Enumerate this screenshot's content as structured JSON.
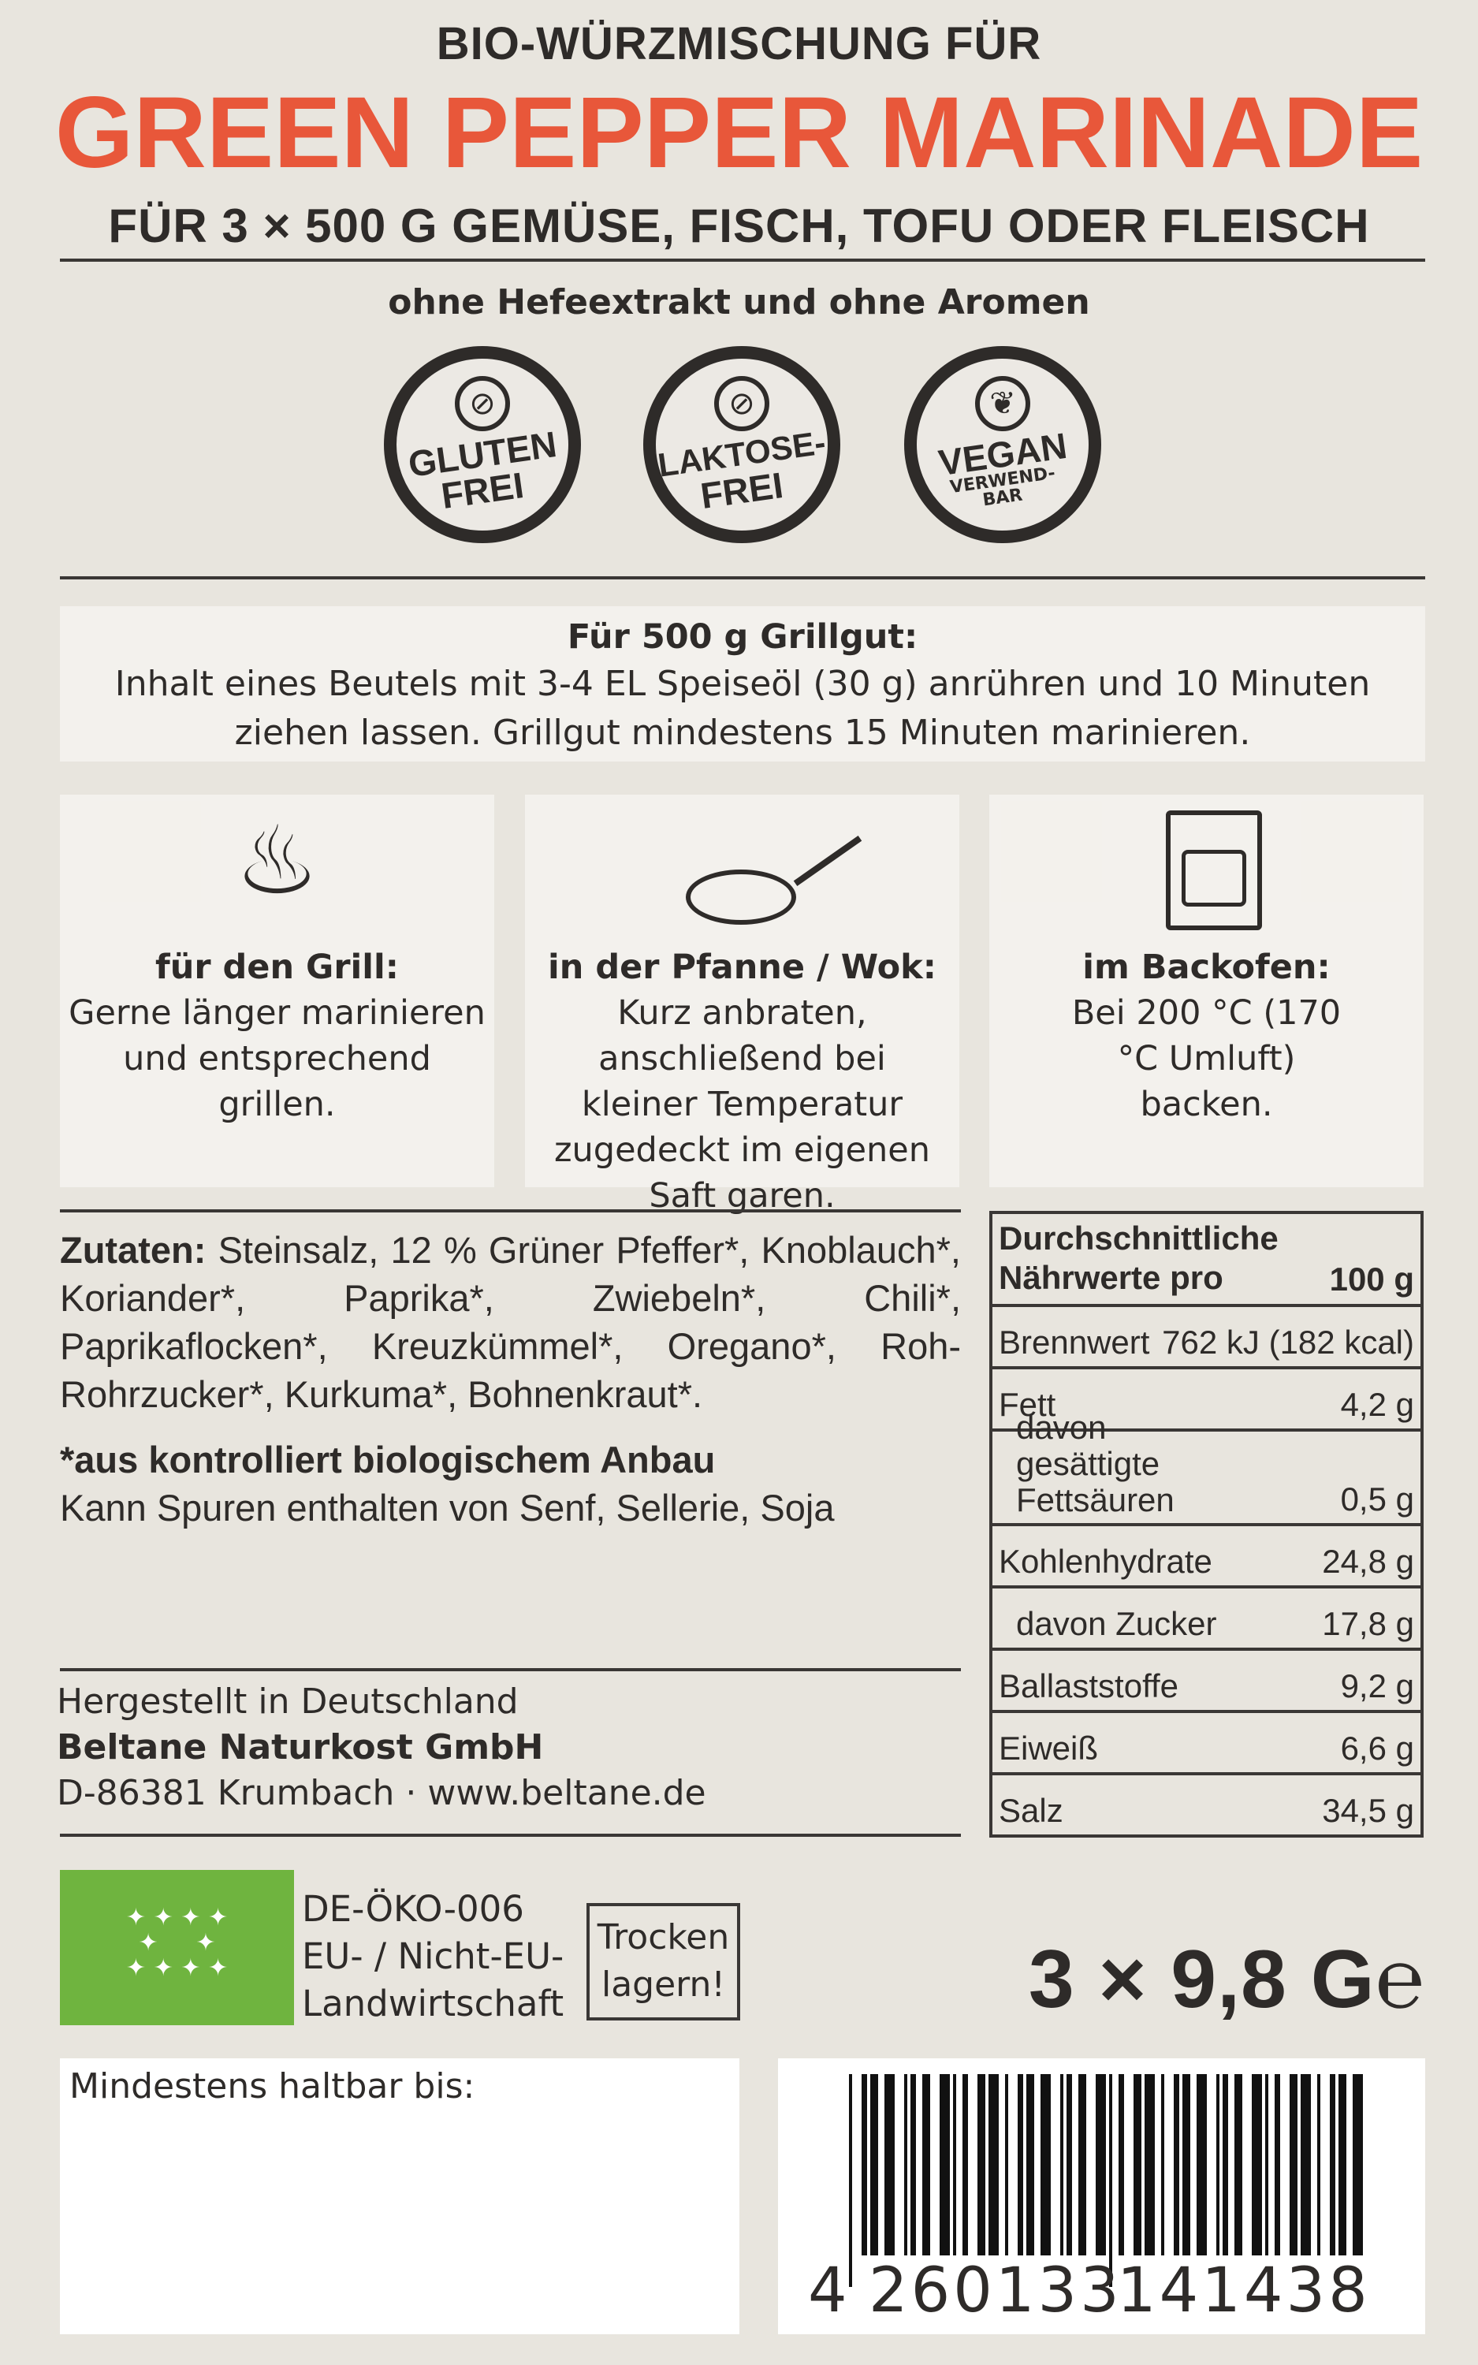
{
  "header": {
    "pretitle": "BIO-WÜRZMISCHUNG FÜR",
    "title": "GREEN PEPPER MARINADE",
    "subtitle": "FÜR 3 × 500 G GEMÜSE, FISCH, TOFU ODER FLEISCH",
    "claim": "ohne Hefeextrakt und ohne Aromen"
  },
  "badges": [
    {
      "icon": "wheat-crossed-icon",
      "line1": "GLUTEN",
      "line2": "FREI"
    },
    {
      "icon": "milk-bottle-crossed-icon",
      "line1": "LAKTOSE-",
      "line2": "FREI"
    },
    {
      "icon": "leaf-icon",
      "line1": "VEGAN",
      "line2": "VERWEND-",
      "line3": "BAR"
    }
  ],
  "instructions": {
    "title": "Für 500 g Grillgut:",
    "text": "Inhalt eines Beutels mit 3-4 EL Speiseöl (30 g) anrühren und 10 Minuten ziehen lassen. Grillgut mindestens 15 Minuten marinieren."
  },
  "methods": [
    {
      "icon": "grill-icon",
      "title": "für den Grill:",
      "text": "Gerne länger marinieren und entsprechend grillen."
    },
    {
      "icon": "frying-pan-icon",
      "title": "in der Pfanne / Wok:",
      "text": "Kurz anbraten, anschließend bei kleiner Temperatur zugedeckt im eigenen Saft garen."
    },
    {
      "icon": "oven-icon",
      "title": "im Backofen:",
      "text": "Bei 200 °C (170 °C Umluft) backen."
    }
  ],
  "ingredients": {
    "label": "Zutaten:",
    "text": "Steinsalz, 12 % Grüner Pfeffer*, Knoblauch*, Koriander*, Paprika*, Zwiebeln*, Chili*, Paprikaflocken*, Kreuzkümmel*, Oregano*, Roh-Rohrzucker*, Kurkuma*, Bohnenkraut*.",
    "organic_note": "*aus kontrolliert biologischem Anbau",
    "allergens": "Kann Spuren enthalten von Senf, Sellerie, Soja"
  },
  "producer": {
    "origin": "Hergestellt in Deutschland",
    "company": "Beltane Naturkost GmbH",
    "address": "D-86381 Krumbach · www.beltane.de"
  },
  "nutrition": {
    "header1": "Durchschnittliche",
    "header2": "Nährwerte pro",
    "per": "100 g",
    "rows": [
      {
        "label": "Brennwert",
        "value": "762 kJ (182 kcal)"
      },
      {
        "label": "Fett",
        "value": "4,2 g"
      },
      {
        "label": "davon gesättigte Fettsäuren",
        "value": "0,5 g",
        "indent": true
      },
      {
        "label": "Kohlenhydrate",
        "value": "24,8 g"
      },
      {
        "label": "davon Zucker",
        "value": "17,8 g",
        "indent": true
      },
      {
        "label": "Ballaststoffe",
        "value": "9,2 g"
      },
      {
        "label": "Eiweiß",
        "value": "6,6 g"
      },
      {
        "label": "Salz",
        "value": "34,5 g"
      }
    ]
  },
  "certification": {
    "code": "DE-ÖKO-006",
    "origin1": "EU- / Nicht-EU-",
    "origin2": "Landwirtschaft",
    "logo_color": "#6fb43f"
  },
  "storage": {
    "line1": "Trocken",
    "line2": "lagern!"
  },
  "net_weight": "3 × 9,8 G℮",
  "best_before": {
    "label": "Mindestens haltbar bis:"
  },
  "barcode": {
    "first": "4",
    "group1": "260133",
    "group2": "141438"
  },
  "colors": {
    "accent": "#e8573a",
    "text": "#2e2b29",
    "background": "#e8e5de"
  }
}
